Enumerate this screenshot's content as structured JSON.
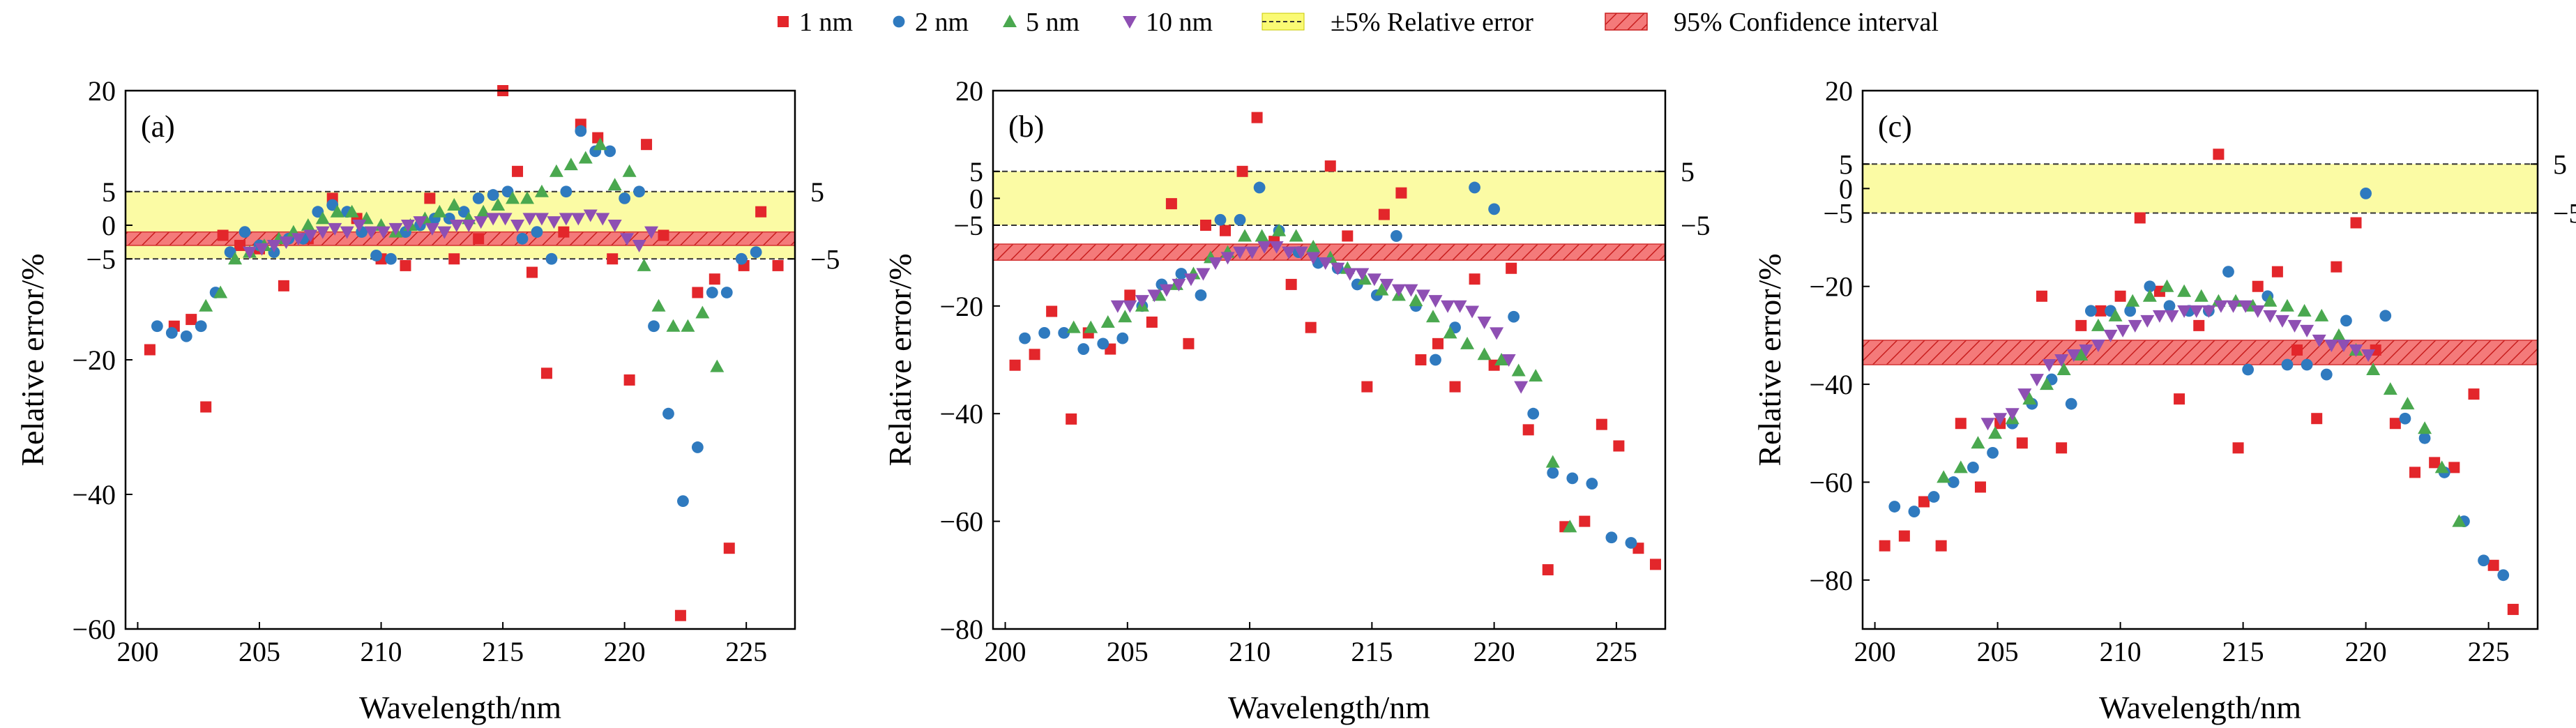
{
  "legend": {
    "items": [
      {
        "label": "1 nm",
        "kind": "marker",
        "marker": "square",
        "color": "#e3262b"
      },
      {
        "label": "2 nm",
        "kind": "marker",
        "marker": "circle",
        "color": "#2f7abf"
      },
      {
        "label": "5 nm",
        "kind": "marker",
        "marker": "triangle-up",
        "color": "#4aa84f"
      },
      {
        "label": "10 nm",
        "kind": "marker",
        "marker": "triangle-down",
        "color": "#8e4fb3"
      },
      {
        "label": "±5% Relative error",
        "kind": "band",
        "color": "#fafa74"
      },
      {
        "label": "95% Confidence interval",
        "kind": "hatch",
        "color": "#f05a5a"
      }
    ]
  },
  "chart_data": [
    {
      "type": "scatter",
      "panel_label": "(a)",
      "xlabel": "Wavelength/nm",
      "ylabel": "Relative error/%",
      "xlim": [
        199.5,
        227
      ],
      "ylim": [
        -60,
        20
      ],
      "xticks": [
        200,
        205,
        210,
        215,
        220,
        225
      ],
      "yticks": [
        -60,
        -40,
        -20,
        -5,
        0,
        5,
        20
      ],
      "right_ticks": [
        5,
        -5
      ],
      "relative_error_band": [
        -5,
        5
      ],
      "confidence_interval": [
        -3,
        -1
      ],
      "series": [
        {
          "name": "1 nm",
          "marker": "square",
          "color": "#e3262b",
          "x": [
            200.5,
            201.5,
            202.2,
            202.8,
            203.5,
            204.2,
            205.0,
            206.0,
            207.0,
            208.0,
            209.0,
            210.0,
            211.0,
            212.0,
            213.0,
            214.0,
            215.0,
            215.6,
            216.2,
            216.8,
            217.5,
            218.2,
            218.9,
            219.5,
            220.2,
            220.9,
            221.6,
            222.3,
            223.0,
            223.7,
            224.3,
            224.9,
            225.6,
            226.3
          ],
          "y": [
            -18.5,
            -15,
            -14,
            -27,
            -1.5,
            -3,
            -3.5,
            -9,
            -2,
            4,
            1,
            -5,
            -6,
            4,
            -5,
            -2,
            20,
            8,
            -7,
            -22,
            -1,
            15,
            13,
            -5,
            -23,
            12,
            -1.5,
            -58,
            -10,
            -8,
            -48,
            -6,
            2,
            -6
          ]
        },
        {
          "name": "2 nm",
          "marker": "circle",
          "color": "#2f7abf",
          "x": [
            200.8,
            201.4,
            202.0,
            202.6,
            203.2,
            203.8,
            204.4,
            205.0,
            205.6,
            206.2,
            206.8,
            207.4,
            208.0,
            208.6,
            209.2,
            209.8,
            210.4,
            211.0,
            211.6,
            212.2,
            212.8,
            213.4,
            214.0,
            214.6,
            215.2,
            215.8,
            216.4,
            217.0,
            217.6,
            218.2,
            218.8,
            219.4,
            220.0,
            220.6,
            221.2,
            221.8,
            222.4,
            223.0,
            223.6,
            224.2,
            224.8,
            225.4
          ],
          "y": [
            -15,
            -16,
            -16.5,
            -15,
            -10,
            -4,
            -1,
            -3,
            -4,
            -2,
            -2,
            2,
            3,
            2,
            -1,
            -4.5,
            -5,
            -1,
            0,
            1,
            1,
            2,
            4,
            4.5,
            5,
            -2,
            -1,
            -5,
            5,
            14,
            11,
            11,
            4,
            5,
            -15,
            -28,
            -41,
            -33,
            -10,
            -10,
            -5,
            -4
          ]
        },
        {
          "name": "5 nm",
          "marker": "triangle-up",
          "color": "#4aa84f",
          "x": [
            202.8,
            203.4,
            204.0,
            204.6,
            205.2,
            205.8,
            206.4,
            207.0,
            207.6,
            208.2,
            208.8,
            209.4,
            210.0,
            210.6,
            211.2,
            211.8,
            212.4,
            213.0,
            213.6,
            214.2,
            214.8,
            215.4,
            216.0,
            216.6,
            217.2,
            217.8,
            218.4,
            219.0,
            219.6,
            220.2,
            220.8,
            221.4,
            222.0,
            222.6,
            223.2,
            223.8
          ],
          "y": [
            -12,
            -10,
            -5,
            -4,
            -3,
            -2,
            -1,
            0,
            1,
            2,
            2,
            1,
            0,
            -1,
            0,
            1,
            2,
            3,
            1,
            2,
            3,
            4,
            4,
            5,
            8,
            9,
            10,
            12,
            6,
            8,
            -6,
            -12,
            -15,
            -15,
            -13,
            -21
          ]
        },
        {
          "name": "10 nm",
          "marker": "triangle-down",
          "color": "#8e4fb3",
          "x": [
            204.6,
            205.1,
            205.6,
            206.1,
            206.6,
            207.1,
            207.6,
            208.1,
            208.6,
            209.1,
            209.6,
            210.1,
            210.6,
            211.1,
            211.6,
            212.1,
            212.6,
            213.1,
            213.6,
            214.1,
            214.6,
            215.1,
            215.6,
            216.1,
            216.6,
            217.1,
            217.6,
            218.1,
            218.6,
            219.1,
            219.6,
            220.1,
            220.6,
            221.1
          ],
          "y": [
            -4,
            -3.5,
            -3,
            -2.5,
            -2,
            -1.5,
            -1,
            -0.5,
            -1,
            0,
            -1,
            -1,
            -0.5,
            0,
            0.5,
            -0.5,
            -1,
            0,
            0,
            0.5,
            1,
            1,
            0,
            1,
            1,
            0.5,
            1,
            1,
            1.5,
            1,
            0,
            -2,
            -3,
            -1
          ]
        }
      ]
    },
    {
      "type": "scatter",
      "panel_label": "(b)",
      "xlabel": "Wavelength/nm",
      "ylabel": "Relative error/%",
      "xlim": [
        199.5,
        227
      ],
      "ylim": [
        -80,
        20
      ],
      "xticks": [
        200,
        205,
        210,
        215,
        220,
        225
      ],
      "yticks": [
        -80,
        -60,
        -40,
        -20,
        -5,
        0,
        5,
        20
      ],
      "right_ticks": [
        5,
        -5
      ],
      "relative_error_band": [
        -5,
        5
      ],
      "confidence_interval": [
        -11.5,
        -8.5
      ],
      "series": [
        {
          "name": "1 nm",
          "marker": "square",
          "color": "#e3262b",
          "x": [
            200.4,
            201.2,
            201.9,
            202.7,
            203.4,
            204.3,
            205.1,
            206.0,
            206.8,
            207.5,
            208.2,
            209.0,
            209.7,
            210.3,
            211.0,
            211.7,
            212.5,
            213.3,
            214.0,
            214.8,
            215.5,
            216.2,
            217.0,
            217.7,
            218.4,
            219.2,
            220.0,
            220.7,
            221.4,
            222.2,
            222.9,
            223.7,
            224.4,
            225.1,
            225.9,
            226.6
          ],
          "y": [
            -31,
            -29,
            -21,
            -41,
            -25,
            -28,
            -18,
            -23,
            -1,
            -27,
            -5,
            -6,
            5,
            15,
            -8,
            -16,
            -24,
            6,
            -7,
            -35,
            -3,
            1,
            -30,
            -27,
            -35,
            -15,
            -31,
            -13,
            -43,
            -69,
            -61,
            -60,
            -42,
            -46,
            -65,
            -68
          ]
        },
        {
          "name": "2 nm",
          "marker": "circle",
          "color": "#2f7abf",
          "x": [
            200.8,
            201.6,
            202.4,
            203.2,
            204.0,
            204.8,
            205.6,
            206.4,
            207.2,
            208.0,
            208.8,
            209.6,
            210.4,
            211.2,
            212.0,
            212.8,
            213.6,
            214.4,
            215.2,
            216.0,
            216.8,
            217.6,
            218.4,
            219.2,
            220.0,
            220.8,
            221.6,
            222.4,
            223.2,
            224.0,
            224.8,
            225.6
          ],
          "y": [
            -26,
            -25,
            -25,
            -28,
            -27,
            -26,
            -20,
            -16,
            -14,
            -18,
            -4,
            -4,
            2,
            -6,
            -10,
            -12,
            -13,
            -16,
            -18,
            -7,
            -20,
            -30,
            -24,
            2,
            -2,
            -22,
            -40,
            -51,
            -52,
            -53,
            -63,
            -64
          ]
        },
        {
          "name": "5 nm",
          "marker": "triangle-up",
          "color": "#4aa84f",
          "x": [
            202.8,
            203.5,
            204.2,
            204.9,
            205.6,
            206.3,
            207.0,
            207.7,
            208.4,
            209.1,
            209.8,
            210.5,
            211.2,
            211.9,
            212.6,
            213.3,
            214.0,
            214.7,
            215.4,
            216.1,
            216.8,
            217.5,
            218.2,
            218.9,
            219.6,
            220.3,
            221.0,
            221.7,
            222.4,
            223.1
          ],
          "y": [
            -24,
            -24,
            -23,
            -22,
            -20,
            -18,
            -16,
            -14,
            -11,
            -10,
            -7,
            -7,
            -6,
            -7,
            -9,
            -11,
            -13,
            -15,
            -17,
            -18,
            -19,
            -22,
            -25,
            -27,
            -29,
            -30,
            -32,
            -33,
            -49,
            -61
          ]
        },
        {
          "name": "10 nm",
          "marker": "triangle-down",
          "color": "#8e4fb3",
          "x": [
            204.6,
            205.1,
            205.6,
            206.1,
            206.6,
            207.1,
            207.6,
            208.1,
            208.6,
            209.1,
            209.6,
            210.1,
            210.6,
            211.1,
            211.6,
            212.1,
            212.6,
            213.1,
            213.6,
            214.1,
            214.6,
            215.1,
            215.6,
            216.1,
            216.6,
            217.1,
            217.6,
            218.1,
            218.6,
            219.1,
            219.6,
            220.1,
            220.6,
            221.1
          ],
          "y": [
            -20,
            -20,
            -19,
            -18,
            -17,
            -16,
            -15,
            -14,
            -12,
            -11,
            -10,
            -10,
            -9,
            -9,
            -10,
            -10,
            -11,
            -12,
            -13,
            -14,
            -14,
            -15,
            -16,
            -17,
            -17,
            -18,
            -19,
            -20,
            -20,
            -21,
            -23,
            -25,
            -30,
            -35
          ]
        }
      ]
    },
    {
      "type": "scatter",
      "panel_label": "(c)",
      "xlabel": "Wavelength/nm",
      "ylabel": "Relative error/%",
      "xlim": [
        199.5,
        227
      ],
      "ylim": [
        -90,
        20
      ],
      "xticks": [
        200,
        205,
        210,
        215,
        220,
        225
      ],
      "yticks": [
        -80,
        -60,
        -40,
        -20,
        -5,
        0,
        5,
        20
      ],
      "right_ticks": [
        5,
        -5
      ],
      "relative_error_band": [
        -5,
        5
      ],
      "confidence_interval": [
        -36,
        -31
      ],
      "series": [
        {
          "name": "1 nm",
          "marker": "square",
          "color": "#e3262b",
          "x": [
            200.4,
            201.2,
            202.0,
            202.7,
            203.5,
            204.3,
            205.1,
            206.0,
            206.8,
            207.6,
            208.4,
            209.2,
            210.0,
            210.8,
            211.6,
            212.4,
            213.2,
            214.0,
            214.8,
            215.6,
            216.4,
            217.2,
            218.0,
            218.8,
            219.6,
            220.4,
            221.2,
            222.0,
            222.8,
            223.6,
            224.4,
            225.2,
            226.0
          ],
          "y": [
            -73,
            -71,
            -64,
            -73,
            -48,
            -61,
            -48,
            -52,
            -22,
            -53,
            -28,
            -25,
            -22,
            -6,
            -21,
            -43,
            -28,
            7,
            -53,
            -20,
            -17,
            -33,
            -47,
            -16,
            -7,
            -33,
            -48,
            -58,
            -56,
            -57,
            -42,
            -77,
            -86
          ]
        },
        {
          "name": "2 nm",
          "marker": "circle",
          "color": "#2f7abf",
          "x": [
            200.8,
            201.6,
            202.4,
            203.2,
            204.0,
            204.8,
            205.6,
            206.4,
            207.2,
            208.0,
            208.8,
            209.6,
            210.4,
            211.2,
            212.0,
            212.8,
            213.6,
            214.4,
            215.2,
            216.0,
            216.8,
            217.6,
            218.4,
            219.2,
            220.0,
            220.8,
            221.6,
            222.4,
            223.2,
            224.0,
            224.8,
            225.6
          ],
          "y": [
            -65,
            -66,
            -63,
            -60,
            -57,
            -54,
            -48,
            -44,
            -39,
            -44,
            -25,
            -25,
            -25,
            -20,
            -24,
            -25,
            -25,
            -17,
            -37,
            -22,
            -36,
            -36,
            -38,
            -27,
            -1,
            -26,
            -47,
            -51,
            -58,
            -68,
            -76,
            -79
          ]
        },
        {
          "name": "5 nm",
          "marker": "triangle-up",
          "color": "#4aa84f",
          "x": [
            202.8,
            203.5,
            204.2,
            204.9,
            205.6,
            206.3,
            207.0,
            207.7,
            208.4,
            209.1,
            209.8,
            210.5,
            211.2,
            211.9,
            212.6,
            213.3,
            214.0,
            214.7,
            215.4,
            216.1,
            216.8,
            217.5,
            218.2,
            218.9,
            219.6,
            220.3,
            221.0,
            221.7,
            222.4,
            223.1,
            223.8
          ],
          "y": [
            -59,
            -57,
            -52,
            -50,
            -47,
            -43,
            -40,
            -37,
            -34,
            -28,
            -26,
            -23,
            -22,
            -20,
            -21,
            -22,
            -23,
            -23,
            -24,
            -23,
            -24,
            -25,
            -26,
            -30,
            -33,
            -37,
            -41,
            -44,
            -49,
            -57,
            -68
          ]
        },
        {
          "name": "10 nm",
          "marker": "triangle-down",
          "color": "#8e4fb3",
          "x": [
            204.6,
            205.1,
            205.6,
            206.1,
            206.6,
            207.1,
            207.6,
            208.1,
            208.6,
            209.1,
            209.6,
            210.1,
            210.6,
            211.1,
            211.6,
            212.1,
            212.6,
            213.1,
            213.6,
            214.1,
            214.6,
            215.1,
            215.6,
            216.1,
            216.6,
            217.1,
            217.6,
            218.1,
            218.6,
            219.1,
            219.6,
            220.1
          ],
          "y": [
            -48,
            -47,
            -46,
            -42,
            -39,
            -36,
            -35,
            -34,
            -33,
            -32,
            -30,
            -29,
            -28,
            -27,
            -26,
            -26,
            -25,
            -25,
            -25,
            -24,
            -24,
            -24,
            -25,
            -26,
            -27,
            -28,
            -29,
            -31,
            -32,
            -32,
            -33,
            -34
          ]
        }
      ]
    }
  ]
}
